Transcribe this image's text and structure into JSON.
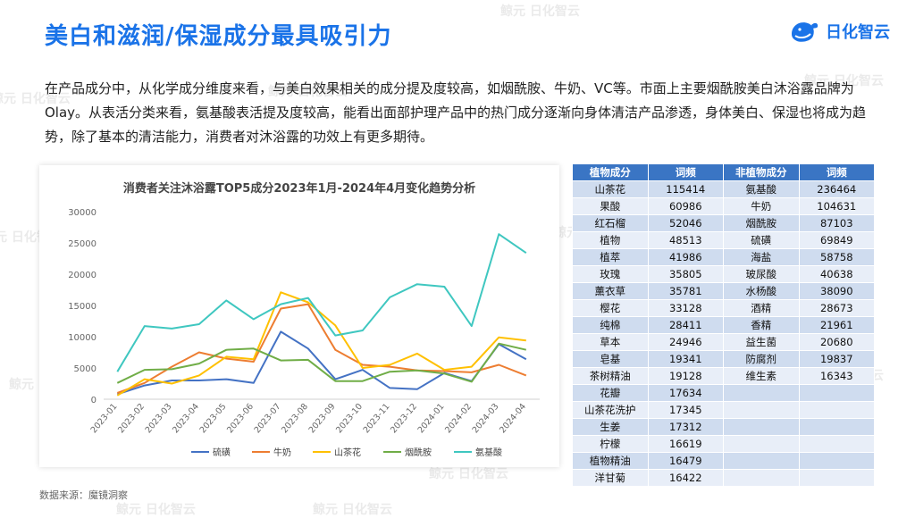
{
  "header": {
    "title": "美白和滋润/保湿成分最具吸引力",
    "logo_text": "日化智云"
  },
  "intro": "在产品成分中，从化学成分维度来看，与美白效果相关的成分提及度较高，如烟酰胺、牛奶、VC等。市面上主要烟酰胺美白沐浴露品牌为Olay。从表活分类来看，氨基酸表活提及度较高，能看出面部护理产品中的热门成分逐渐向身体清洁产品渗透，身体美白、保湿也将成为趋势，除了基本的清洁能力，消费者对沐浴露的功效上有更多期待。",
  "source": "数据来源：魔镜洞察",
  "watermark": "鲸元 日化智云",
  "chart_data": {
    "type": "line",
    "title": "消费者关注沐浴露TOP5成分2023年1月-2024年4月变化趋势分析",
    "categories": [
      "2023-01",
      "2023-02",
      "2023-03",
      "2023-04",
      "2023-05",
      "2023-06",
      "2023-07",
      "2023-08",
      "2023-09",
      "2023-10",
      "2023-11",
      "2023-12",
      "2024-01",
      "2024-02",
      "2024-03",
      "2024-04"
    ],
    "ylim": [
      0,
      30000
    ],
    "yticks": [
      0,
      5000,
      10000,
      15000,
      20000,
      25000,
      30000
    ],
    "legend_position": "bottom",
    "grid": false,
    "series": [
      {
        "name": "硫磺",
        "color": "#4472c4",
        "values": [
          800,
          2200,
          3000,
          3000,
          3200,
          2600,
          10800,
          8100,
          3200,
          4700,
          1800,
          1600,
          4200,
          2900,
          8800,
          6400
        ]
      },
      {
        "name": "牛奶",
        "color": "#ed7d31",
        "values": [
          1000,
          2600,
          5200,
          7500,
          6500,
          6000,
          14500,
          15200,
          7900,
          5500,
          5200,
          4600,
          4500,
          4300,
          5500,
          3800
        ]
      },
      {
        "name": "山茶花",
        "color": "#ffc000",
        "values": [
          600,
          3200,
          2500,
          3800,
          6800,
          6400,
          17100,
          15500,
          11800,
          5000,
          5500,
          7300,
          4700,
          5200,
          9900,
          9400
        ]
      },
      {
        "name": "烟酰胺",
        "color": "#70ad47",
        "values": [
          2600,
          4700,
          4800,
          5700,
          7900,
          8100,
          6200,
          6300,
          2900,
          2900,
          4400,
          4600,
          4100,
          2800,
          8900,
          7900
        ]
      },
      {
        "name": "氨基酸",
        "color": "#3fc7c0",
        "values": [
          4400,
          11700,
          11300,
          12000,
          15800,
          12800,
          15200,
          16200,
          10200,
          11000,
          16300,
          18400,
          18000,
          11700,
          26400,
          23400
        ]
      }
    ]
  },
  "table": {
    "headers": [
      "植物成分",
      "词频",
      "非植物成分",
      "词频"
    ],
    "rows": [
      [
        "山茶花",
        "115414",
        "氨基酸",
        "236464"
      ],
      [
        "果酸",
        "60986",
        "牛奶",
        "104631"
      ],
      [
        "红石榴",
        "52046",
        "烟酰胺",
        "87103"
      ],
      [
        "植物",
        "48513",
        "硫磺",
        "69849"
      ],
      [
        "植萃",
        "41986",
        "海盐",
        "58758"
      ],
      [
        "玫瑰",
        "35805",
        "玻尿酸",
        "40638"
      ],
      [
        "薰衣草",
        "35781",
        "水杨酸",
        "38090"
      ],
      [
        "樱花",
        "33128",
        "酒精",
        "28673"
      ],
      [
        "纯棉",
        "28411",
        "香精",
        "21961"
      ],
      [
        "草本",
        "24946",
        "益生菌",
        "20680"
      ],
      [
        "皂基",
        "19341",
        "防腐剂",
        "19837"
      ],
      [
        "茶树精油",
        "19128",
        "维生素",
        "16343"
      ],
      [
        "花瓣",
        "17634",
        "",
        ""
      ],
      [
        "山茶花洗护",
        "17345",
        "",
        ""
      ],
      [
        "生姜",
        "17312",
        "",
        ""
      ],
      [
        "柠檬",
        "16619",
        "",
        ""
      ],
      [
        "植物精油",
        "16479",
        "",
        ""
      ],
      [
        "洋甘菊",
        "16422",
        "",
        ""
      ]
    ]
  }
}
